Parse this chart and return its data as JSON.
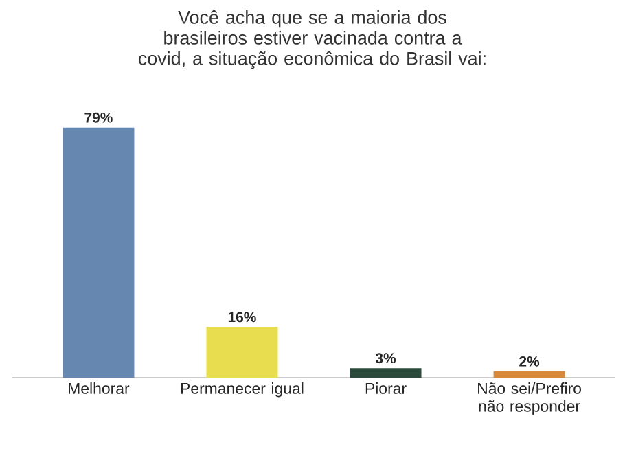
{
  "chart_data": {
    "type": "bar",
    "title": "Você acha que se a maioria dos brasileiros estiver vacinada contra a covid, a situação econômica do Brasil vai:",
    "categories": [
      "Melhorar",
      "Permanecer igual",
      "Piorar",
      "Não sei/Prefiro não responder"
    ],
    "values": [
      79,
      16,
      3,
      2
    ],
    "value_labels": [
      "79%",
      "16%",
      "3%",
      "2%"
    ],
    "colors": [
      "#6688b0",
      "#e8dd4e",
      "#2c4a3c",
      "#d88a3a"
    ]
  }
}
